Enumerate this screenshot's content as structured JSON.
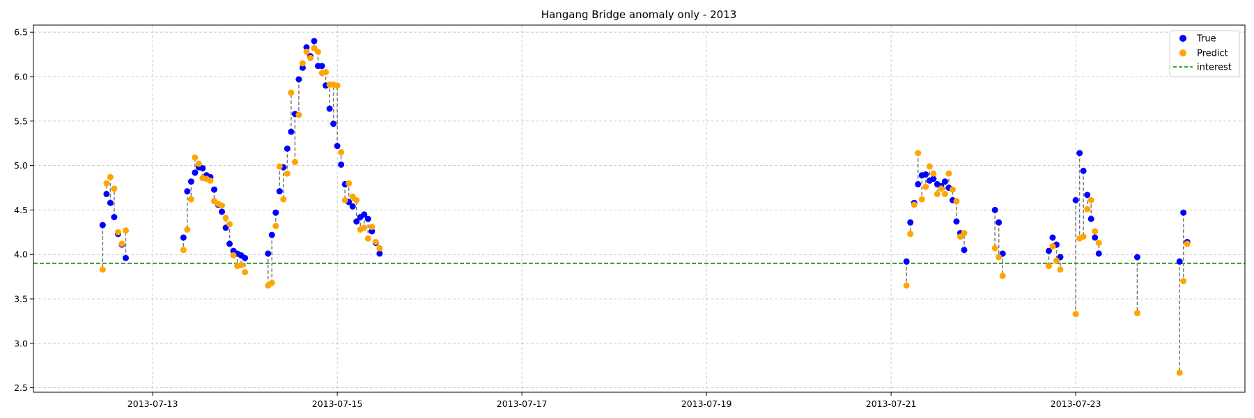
{
  "chart_data": {
    "type": "scatter",
    "title": "Hangang Bridge anomaly only - 2013",
    "xlabel": "",
    "ylabel": "",
    "x_unit": "datetime",
    "xlim": [
      "2013-07-11T17:00",
      "2013-07-24T20:00"
    ],
    "ylim": [
      2.45,
      6.58
    ],
    "x_ticks": [
      "2013-07-13",
      "2013-07-15",
      "2013-07-17",
      "2013-07-19",
      "2013-07-21",
      "2013-07-23"
    ],
    "y_ticks": [
      "2.5",
      "3.0",
      "3.5",
      "4.0",
      "4.5",
      "5.0",
      "5.5",
      "6.0",
      "6.5"
    ],
    "grid": true,
    "legend": {
      "position": "top-right",
      "entries": [
        {
          "label": "True",
          "kind": "marker",
          "color": "#0000ff"
        },
        {
          "label": "Predict",
          "kind": "marker",
          "color": "#ffa500"
        },
        {
          "label": "interest",
          "kind": "dashed-line",
          "color": "#008000"
        }
      ]
    },
    "interest_level": 3.9,
    "series": [
      {
        "name": "True",
        "color": "#0000ff",
        "points": [
          [
            "2013-07-12T11:00",
            4.33
          ],
          [
            "2013-07-12T12:00",
            4.68
          ],
          [
            "2013-07-12T13:00",
            4.58
          ],
          [
            "2013-07-12T14:00",
            4.42
          ],
          [
            "2013-07-12T15:00",
            4.23
          ],
          [
            "2013-07-12T16:00",
            4.11
          ],
          [
            "2013-07-12T17:00",
            3.96
          ],
          [
            "2013-07-13T08:00",
            4.19
          ],
          [
            "2013-07-13T09:00",
            4.71
          ],
          [
            "2013-07-13T10:00",
            4.82
          ],
          [
            "2013-07-13T11:00",
            4.92
          ],
          [
            "2013-07-13T12:00",
            4.98
          ],
          [
            "2013-07-13T13:00",
            4.97
          ],
          [
            "2013-07-13T14:00",
            4.89
          ],
          [
            "2013-07-13T15:00",
            4.87
          ],
          [
            "2013-07-13T16:00",
            4.73
          ],
          [
            "2013-07-13T17:00",
            4.56
          ],
          [
            "2013-07-13T18:00",
            4.48
          ],
          [
            "2013-07-13T19:00",
            4.3
          ],
          [
            "2013-07-13T20:00",
            4.12
          ],
          [
            "2013-07-13T21:00",
            4.04
          ],
          [
            "2013-07-13T22:00",
            4.01
          ],
          [
            "2013-07-13T23:00",
            3.99
          ],
          [
            "2013-07-14T00:00",
            3.96
          ],
          [
            "2013-07-14T06:00",
            4.01
          ],
          [
            "2013-07-14T07:00",
            4.22
          ],
          [
            "2013-07-14T08:00",
            4.47
          ],
          [
            "2013-07-14T09:00",
            4.71
          ],
          [
            "2013-07-14T10:00",
            4.98
          ],
          [
            "2013-07-14T11:00",
            5.19
          ],
          [
            "2013-07-14T12:00",
            5.38
          ],
          [
            "2013-07-14T13:00",
            5.58
          ],
          [
            "2013-07-14T14:00",
            5.97
          ],
          [
            "2013-07-14T15:00",
            6.1
          ],
          [
            "2013-07-14T16:00",
            6.33
          ],
          [
            "2013-07-14T17:00",
            6.23
          ],
          [
            "2013-07-14T18:00",
            6.4
          ],
          [
            "2013-07-14T19:00",
            6.12
          ],
          [
            "2013-07-14T20:00",
            6.12
          ],
          [
            "2013-07-14T21:00",
            5.9
          ],
          [
            "2013-07-14T22:00",
            5.64
          ],
          [
            "2013-07-14T23:00",
            5.47
          ],
          [
            "2013-07-15T00:00",
            5.22
          ],
          [
            "2013-07-15T01:00",
            5.01
          ],
          [
            "2013-07-15T02:00",
            4.79
          ],
          [
            "2013-07-15T03:00",
            4.59
          ],
          [
            "2013-07-15T04:00",
            4.54
          ],
          [
            "2013-07-15T05:00",
            4.37
          ],
          [
            "2013-07-15T06:00",
            4.42
          ],
          [
            "2013-07-15T07:00",
            4.45
          ],
          [
            "2013-07-15T08:00",
            4.4
          ],
          [
            "2013-07-15T09:00",
            4.26
          ],
          [
            "2013-07-15T10:00",
            4.13
          ],
          [
            "2013-07-15T11:00",
            4.01
          ],
          [
            "2013-07-21T04:00",
            3.92
          ],
          [
            "2013-07-21T05:00",
            4.36
          ],
          [
            "2013-07-21T06:00",
            4.58
          ],
          [
            "2013-07-21T07:00",
            4.79
          ],
          [
            "2013-07-21T08:00",
            4.89
          ],
          [
            "2013-07-21T09:00",
            4.9
          ],
          [
            "2013-07-21T10:00",
            4.83
          ],
          [
            "2013-07-21T11:00",
            4.85
          ],
          [
            "2013-07-21T12:00",
            4.79
          ],
          [
            "2013-07-21T13:00",
            4.77
          ],
          [
            "2013-07-21T14:00",
            4.82
          ],
          [
            "2013-07-21T15:00",
            4.75
          ],
          [
            "2013-07-21T16:00",
            4.61
          ],
          [
            "2013-07-21T17:00",
            4.37
          ],
          [
            "2013-07-21T18:00",
            4.24
          ],
          [
            "2013-07-21T19:00",
            4.05
          ],
          [
            "2013-07-22T03:00",
            4.5
          ],
          [
            "2013-07-22T04:00",
            4.36
          ],
          [
            "2013-07-22T05:00",
            4.01
          ],
          [
            "2013-07-22T17:00",
            4.04
          ],
          [
            "2013-07-22T18:00",
            4.19
          ],
          [
            "2013-07-22T19:00",
            4.11
          ],
          [
            "2013-07-22T20:00",
            3.97
          ],
          [
            "2013-07-23T00:00",
            4.61
          ],
          [
            "2013-07-23T01:00",
            5.14
          ],
          [
            "2013-07-23T02:00",
            4.94
          ],
          [
            "2013-07-23T03:00",
            4.67
          ],
          [
            "2013-07-23T04:00",
            4.4
          ],
          [
            "2013-07-23T05:00",
            4.19
          ],
          [
            "2013-07-23T06:00",
            4.01
          ],
          [
            "2013-07-23T16:00",
            3.97
          ],
          [
            "2013-07-24T03:00",
            3.92
          ],
          [
            "2013-07-24T04:00",
            4.47
          ],
          [
            "2013-07-24T05:00",
            4.14
          ]
        ]
      },
      {
        "name": "Predict",
        "color": "#ffa500",
        "points": [
          [
            "2013-07-12T11:00",
            3.83
          ],
          [
            "2013-07-12T12:00",
            4.8
          ],
          [
            "2013-07-12T13:00",
            4.87
          ],
          [
            "2013-07-12T14:00",
            4.74
          ],
          [
            "2013-07-12T15:00",
            4.25
          ],
          [
            "2013-07-12T16:00",
            4.12
          ],
          [
            "2013-07-12T17:00",
            4.27
          ],
          [
            "2013-07-13T08:00",
            4.05
          ],
          [
            "2013-07-13T09:00",
            4.28
          ],
          [
            "2013-07-13T10:00",
            4.62
          ],
          [
            "2013-07-13T11:00",
            5.09
          ],
          [
            "2013-07-13T12:00",
            5.02
          ],
          [
            "2013-07-13T13:00",
            4.86
          ],
          [
            "2013-07-13T14:00",
            4.85
          ],
          [
            "2013-07-13T15:00",
            4.83
          ],
          [
            "2013-07-13T16:00",
            4.6
          ],
          [
            "2013-07-13T17:00",
            4.57
          ],
          [
            "2013-07-13T18:00",
            4.55
          ],
          [
            "2013-07-13T19:00",
            4.41
          ],
          [
            "2013-07-13T20:00",
            4.34
          ],
          [
            "2013-07-13T21:00",
            3.99
          ],
          [
            "2013-07-13T22:00",
            3.87
          ],
          [
            "2013-07-13T23:00",
            3.88
          ],
          [
            "2013-07-14T00:00",
            3.8
          ],
          [
            "2013-07-14T06:00",
            3.65
          ],
          [
            "2013-07-14T07:00",
            3.68
          ],
          [
            "2013-07-14T08:00",
            4.32
          ],
          [
            "2013-07-14T09:00",
            4.99
          ],
          [
            "2013-07-14T10:00",
            4.62
          ],
          [
            "2013-07-14T11:00",
            4.91
          ],
          [
            "2013-07-14T12:00",
            5.82
          ],
          [
            "2013-07-14T13:00",
            5.04
          ],
          [
            "2013-07-14T14:00",
            5.57
          ],
          [
            "2013-07-14T15:00",
            6.15
          ],
          [
            "2013-07-14T16:00",
            6.28
          ],
          [
            "2013-07-14T17:00",
            6.21
          ],
          [
            "2013-07-14T18:00",
            6.32
          ],
          [
            "2013-07-14T19:00",
            6.28
          ],
          [
            "2013-07-14T20:00",
            6.04
          ],
          [
            "2013-07-14T21:00",
            6.05
          ],
          [
            "2013-07-14T22:00",
            5.91
          ],
          [
            "2013-07-14T23:00",
            5.91
          ],
          [
            "2013-07-15T00:00",
            5.9
          ],
          [
            "2013-07-15T01:00",
            5.15
          ],
          [
            "2013-07-15T02:00",
            4.61
          ],
          [
            "2013-07-15T03:00",
            4.8
          ],
          [
            "2013-07-15T04:00",
            4.65
          ],
          [
            "2013-07-15T05:00",
            4.61
          ],
          [
            "2013-07-15T06:00",
            4.28
          ],
          [
            "2013-07-15T07:00",
            4.3
          ],
          [
            "2013-07-15T08:00",
            4.18
          ],
          [
            "2013-07-15T09:00",
            4.31
          ],
          [
            "2013-07-15T10:00",
            4.14
          ],
          [
            "2013-07-15T11:00",
            4.07
          ],
          [
            "2013-07-21T04:00",
            3.65
          ],
          [
            "2013-07-21T05:00",
            4.23
          ],
          [
            "2013-07-21T06:00",
            4.56
          ],
          [
            "2013-07-21T07:00",
            5.14
          ],
          [
            "2013-07-21T08:00",
            4.62
          ],
          [
            "2013-07-21T09:00",
            4.76
          ],
          [
            "2013-07-21T10:00",
            4.99
          ],
          [
            "2013-07-21T11:00",
            4.91
          ],
          [
            "2013-07-21T12:00",
            4.68
          ],
          [
            "2013-07-21T13:00",
            4.74
          ],
          [
            "2013-07-21T14:00",
            4.68
          ],
          [
            "2013-07-21T15:00",
            4.91
          ],
          [
            "2013-07-21T16:00",
            4.73
          ],
          [
            "2013-07-21T17:00",
            4.6
          ],
          [
            "2013-07-21T18:00",
            4.2
          ],
          [
            "2013-07-21T19:00",
            4.24
          ],
          [
            "2013-07-22T03:00",
            4.07
          ],
          [
            "2013-07-22T04:00",
            3.97
          ],
          [
            "2013-07-22T05:00",
            3.76
          ],
          [
            "2013-07-22T17:00",
            3.87
          ],
          [
            "2013-07-22T18:00",
            4.09
          ],
          [
            "2013-07-22T19:00",
            3.93
          ],
          [
            "2013-07-22T20:00",
            3.83
          ],
          [
            "2013-07-23T00:00",
            3.33
          ],
          [
            "2013-07-23T01:00",
            4.18
          ],
          [
            "2013-07-23T02:00",
            4.2
          ],
          [
            "2013-07-23T03:00",
            4.51
          ],
          [
            "2013-07-23T04:00",
            4.61
          ],
          [
            "2013-07-23T05:00",
            4.26
          ],
          [
            "2013-07-23T06:00",
            4.13
          ],
          [
            "2013-07-23T16:00",
            3.34
          ],
          [
            "2013-07-24T03:00",
            2.67
          ],
          [
            "2013-07-24T04:00",
            3.7
          ],
          [
            "2013-07-24T05:00",
            4.12
          ]
        ]
      }
    ]
  }
}
